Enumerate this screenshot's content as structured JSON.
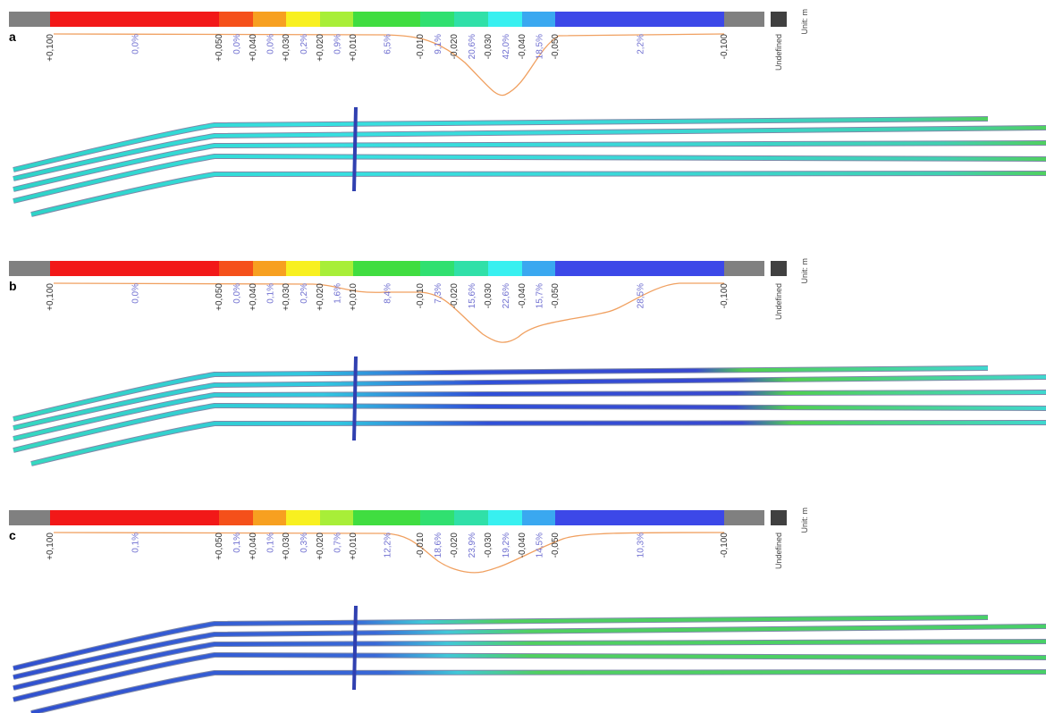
{
  "panels": [
    {
      "label": "a",
      "ticks": [
        "+0,100",
        "+0,050",
        "+0,040",
        "+0,030",
        "+0,020",
        "+0,010",
        "-0,010",
        "-0,020",
        "-0,030",
        "-0,040",
        "-0,050",
        "-0,100"
      ],
      "percents": [
        "0,0%",
        "0,0%",
        "0,0%",
        "0,2%",
        "0,9%",
        "6,5%",
        "9,1%",
        "20,6%",
        "42,0%",
        "18,5%",
        "2,2%"
      ],
      "undefined": "Undefined",
      "unit": "Unit: m"
    },
    {
      "label": "b",
      "ticks": [
        "+0,100",
        "+0,050",
        "+0,040",
        "+0,030",
        "+0,020",
        "+0,010",
        "-0,010",
        "-0,020",
        "-0,030",
        "-0,040",
        "-0,050",
        "-0,100"
      ],
      "percents": [
        "0,0%",
        "0,0%",
        "0,1%",
        "0,2%",
        "1,6%",
        "8,4%",
        "7,3%",
        "15,6%",
        "22,6%",
        "15,7%",
        "28,5%"
      ],
      "undefined": "Undefined",
      "unit": "Unit: m"
    },
    {
      "label": "c",
      "ticks": [
        "+0,100",
        "+0,050",
        "+0,040",
        "+0,030",
        "+0,020",
        "+0,010",
        "-0,010",
        "-0,020",
        "-0,030",
        "-0,040",
        "-0,050",
        "-0,100"
      ],
      "percents": [
        "0,1%",
        "0,1%",
        "0,1%",
        "0,3%",
        "0,7%",
        "12,2%",
        "18,6%",
        "23,9%",
        "19,2%",
        "14,5%",
        "10,3%"
      ],
      "undefined": "Undefined",
      "unit": "Unit: m"
    }
  ]
}
